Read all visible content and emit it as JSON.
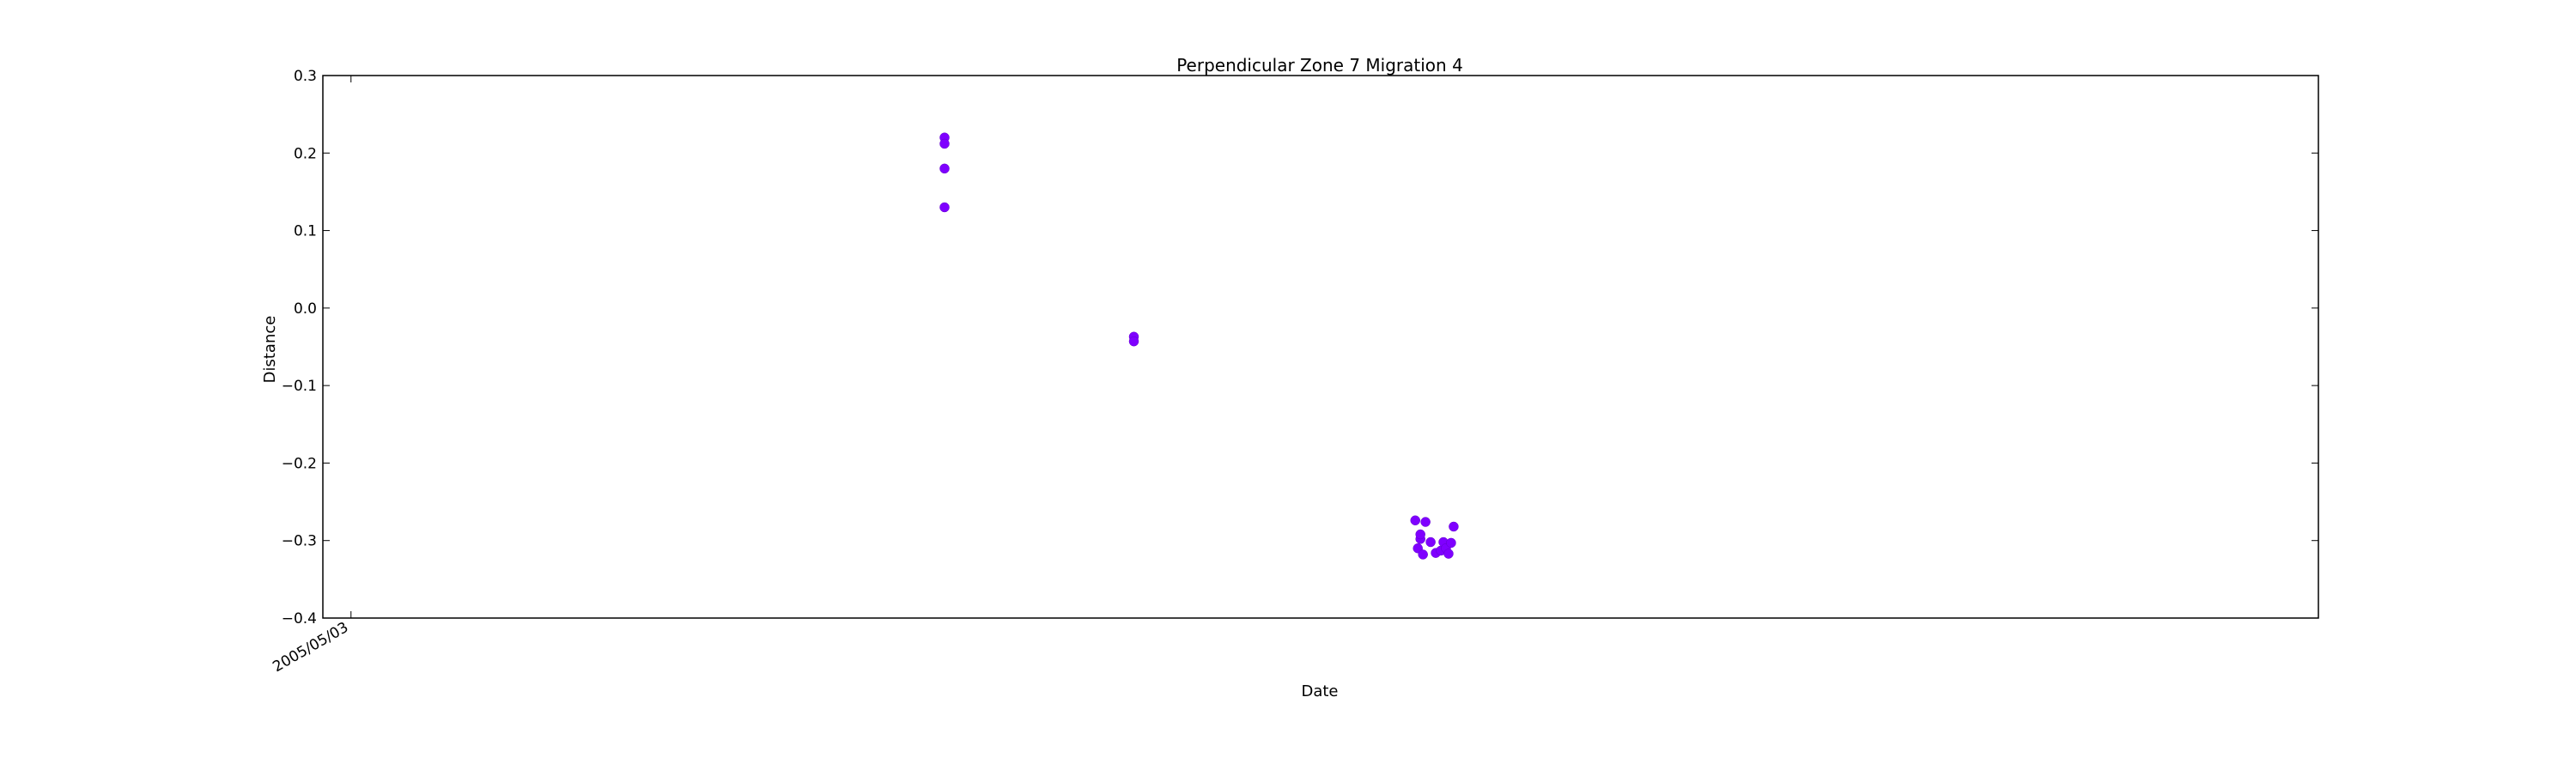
{
  "chart_data": {
    "type": "scatter",
    "title": "Perpendicular Zone 7 Migration 4",
    "xlabel": "Date",
    "ylabel": "Distance",
    "ylim": [
      -0.4,
      0.3
    ],
    "xlim": [
      "2005/04/22",
      "2007/06/11"
    ],
    "yticks": [
      "0.3",
      "0.2",
      "0.1",
      "0.0",
      "−0.1",
      "−0.2",
      "−0.3",
      "−0.4"
    ],
    "ytick_values": [
      0.3,
      0.2,
      0.1,
      0.0,
      -0.1,
      -0.2,
      -0.3,
      -0.4
    ],
    "xticks": [
      "2005/05/03"
    ],
    "xtick_values": [
      "2005/05/03"
    ],
    "grid": false,
    "marker_color": "#7f00ff",
    "series": [
      {
        "points": [
          {
            "x": "2005/12/21",
            "y": 0.22
          },
          {
            "x": "2005/12/21",
            "y": 0.212
          },
          {
            "x": "2005/12/21",
            "y": 0.18
          },
          {
            "x": "2005/12/21",
            "y": 0.13
          },
          {
            "x": "2006/03/05",
            "y": -0.037
          },
          {
            "x": "2006/03/05",
            "y": -0.043
          },
          {
            "x": "2006/06/23",
            "y": -0.274
          },
          {
            "x": "2006/06/24",
            "y": -0.31
          },
          {
            "x": "2006/06/25",
            "y": -0.298
          },
          {
            "x": "2006/06/25",
            "y": -0.292
          },
          {
            "x": "2006/06/26",
            "y": -0.318
          },
          {
            "x": "2006/06/27",
            "y": -0.276
          },
          {
            "x": "2006/06/29",
            "y": -0.302
          },
          {
            "x": "2006/07/01",
            "y": -0.316
          },
          {
            "x": "2006/07/03",
            "y": -0.313
          },
          {
            "x": "2006/07/04",
            "y": -0.302
          },
          {
            "x": "2006/07/05",
            "y": -0.31
          },
          {
            "x": "2006/07/06",
            "y": -0.317
          },
          {
            "x": "2006/07/07",
            "y": -0.303
          },
          {
            "x": "2006/07/08",
            "y": -0.282
          }
        ]
      }
    ]
  }
}
